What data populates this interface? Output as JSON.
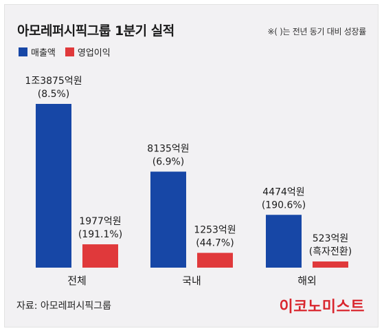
{
  "header": {
    "title": "아모레퍼시픽그룹 1분기 실적",
    "note": "※( )는 전년 동기 대비 성장률"
  },
  "footer": {
    "source": "자료: 아모레퍼시픽그룹",
    "brand": "이코노미스트"
  },
  "colors": {
    "revenue": "#1747a6",
    "operating_profit": "#e0393b",
    "background": "#f2f1f3",
    "brand": "#d9262e"
  },
  "chart_data": {
    "type": "bar",
    "title": "아모레퍼시픽그룹 1분기 실적",
    "categories": [
      "전체",
      "국내",
      "해외"
    ],
    "series": [
      {
        "name": "매출액",
        "values": [
          13875,
          8135,
          4474
        ],
        "labels": [
          "1조3875억원",
          "8135억원",
          "4474억원"
        ],
        "growth": [
          "(8.5%)",
          "(6.9%)",
          "(190.6%)"
        ]
      },
      {
        "name": "영업이익",
        "values": [
          1977,
          1253,
          523
        ],
        "labels": [
          "1977억원",
          "1253억원",
          "523억원"
        ],
        "growth": [
          "(191.1%)",
          "(44.7%)",
          "(흑자전환)"
        ]
      }
    ],
    "unit": "억원",
    "ylim": [
      0,
      14000
    ],
    "grid": false,
    "legend_position": "top-left"
  }
}
